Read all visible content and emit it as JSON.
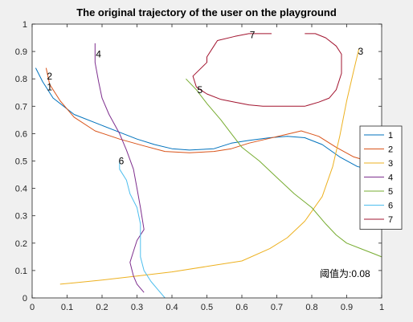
{
  "chart_data": {
    "type": "line",
    "title": "The original trajectory of the user on the playground",
    "xlabel": "",
    "ylabel": "",
    "xlim": [
      0,
      1
    ],
    "ylim": [
      0,
      1
    ],
    "xticks": [
      "0",
      "0.1",
      "0.2",
      "0.3",
      "0.4",
      "0.5",
      "0.6",
      "0.7",
      "0.8",
      "0.9",
      "1"
    ],
    "yticks": [
      "0",
      "0.1",
      "0.2",
      "0.3",
      "0.4",
      "0.5",
      "0.6",
      "0.7",
      "0.8",
      "0.9",
      "1"
    ],
    "grid": false,
    "legend_position": "right",
    "annotation": "阈值为:0.08",
    "series": [
      {
        "name": "1",
        "color": "#0072BD",
        "label": "1",
        "label_at": [
          0.05,
          0.77
        ],
        "points": [
          [
            0.01,
            0.84
          ],
          [
            0.03,
            0.79
          ],
          [
            0.06,
            0.73
          ],
          [
            0.12,
            0.67
          ],
          [
            0.2,
            0.63
          ],
          [
            0.3,
            0.58
          ],
          [
            0.35,
            0.56
          ],
          [
            0.4,
            0.545
          ],
          [
            0.45,
            0.54
          ],
          [
            0.52,
            0.545
          ],
          [
            0.57,
            0.565
          ],
          [
            0.62,
            0.575
          ],
          [
            0.68,
            0.585
          ],
          [
            0.73,
            0.59
          ],
          [
            0.78,
            0.585
          ],
          [
            0.83,
            0.56
          ],
          [
            0.88,
            0.515
          ],
          [
            0.93,
            0.48
          ],
          [
            0.96,
            0.47
          ]
        ]
      },
      {
        "name": "2",
        "color": "#D95319",
        "label": "2",
        "label_at": [
          0.05,
          0.81
        ],
        "points": [
          [
            0.04,
            0.84
          ],
          [
            0.05,
            0.78
          ],
          [
            0.08,
            0.72
          ],
          [
            0.12,
            0.66
          ],
          [
            0.18,
            0.61
          ],
          [
            0.25,
            0.58
          ],
          [
            0.32,
            0.555
          ],
          [
            0.38,
            0.535
          ],
          [
            0.45,
            0.53
          ],
          [
            0.52,
            0.535
          ],
          [
            0.57,
            0.545
          ],
          [
            0.62,
            0.565
          ],
          [
            0.67,
            0.58
          ],
          [
            0.72,
            0.595
          ],
          [
            0.77,
            0.61
          ],
          [
            0.82,
            0.59
          ],
          [
            0.87,
            0.55
          ],
          [
            0.92,
            0.515
          ],
          [
            0.96,
            0.5
          ]
        ]
      },
      {
        "name": "3",
        "color": "#EDB120",
        "label": "3",
        "label_at": [
          0.94,
          0.9
        ],
        "points": [
          [
            0.08,
            0.05
          ],
          [
            0.12,
            0.055
          ],
          [
            0.2,
            0.065
          ],
          [
            0.3,
            0.08
          ],
          [
            0.4,
            0.095
          ],
          [
            0.5,
            0.115
          ],
          [
            0.6,
            0.135
          ],
          [
            0.68,
            0.18
          ],
          [
            0.73,
            0.22
          ],
          [
            0.78,
            0.28
          ],
          [
            0.83,
            0.37
          ],
          [
            0.86,
            0.48
          ],
          [
            0.88,
            0.59
          ],
          [
            0.9,
            0.72
          ],
          [
            0.92,
            0.83
          ],
          [
            0.935,
            0.91
          ]
        ]
      },
      {
        "name": "4",
        "color": "#7E2F8E",
        "label": "4",
        "label_at": [
          0.19,
          0.89
        ],
        "points": [
          [
            0.18,
            0.93
          ],
          [
            0.18,
            0.86
          ],
          [
            0.19,
            0.79
          ],
          [
            0.2,
            0.73
          ],
          [
            0.22,
            0.67
          ],
          [
            0.25,
            0.6
          ],
          [
            0.27,
            0.54
          ],
          [
            0.29,
            0.47
          ],
          [
            0.3,
            0.4
          ],
          [
            0.31,
            0.33
          ],
          [
            0.32,
            0.25
          ],
          [
            0.3,
            0.21
          ],
          [
            0.29,
            0.17
          ],
          [
            0.28,
            0.13
          ],
          [
            0.29,
            0.08
          ],
          [
            0.3,
            0.05
          ],
          [
            0.32,
            0.02
          ]
        ]
      },
      {
        "name": "5",
        "color": "#77AC30",
        "label": "5",
        "label_at": [
          0.48,
          0.76
        ],
        "points": [
          [
            0.44,
            0.8
          ],
          [
            0.47,
            0.76
          ],
          [
            0.5,
            0.71
          ],
          [
            0.54,
            0.65
          ],
          [
            0.57,
            0.6
          ],
          [
            0.6,
            0.55
          ],
          [
            0.65,
            0.5
          ],
          [
            0.7,
            0.44
          ],
          [
            0.75,
            0.38
          ],
          [
            0.8,
            0.33
          ],
          [
            0.84,
            0.27
          ],
          [
            0.87,
            0.23
          ],
          [
            0.9,
            0.2
          ],
          [
            0.94,
            0.18
          ],
          [
            0.98,
            0.16
          ],
          [
            1.0,
            0.15
          ]
        ]
      },
      {
        "name": "6",
        "color": "#4DBEEE",
        "label": "6",
        "label_at": [
          0.255,
          0.5
        ],
        "points": [
          [
            0.25,
            0.5
          ],
          [
            0.25,
            0.47
          ],
          [
            0.27,
            0.43
          ],
          [
            0.28,
            0.38
          ],
          [
            0.3,
            0.33
          ],
          [
            0.31,
            0.27
          ],
          [
            0.31,
            0.21
          ],
          [
            0.31,
            0.15
          ],
          [
            0.32,
            0.1
          ],
          [
            0.34,
            0.06
          ],
          [
            0.36,
            0.03
          ],
          [
            0.38,
            0.0
          ]
        ]
      },
      {
        "name": "7",
        "color": "#A2142F",
        "label": "7",
        "label_at": [
          0.63,
          0.96
        ],
        "points": [
          [
            0.78,
            0.965
          ],
          [
            0.81,
            0.965
          ],
          [
            0.84,
            0.95
          ],
          [
            0.87,
            0.92
          ],
          [
            0.885,
            0.89
          ],
          [
            0.885,
            0.82
          ],
          [
            0.87,
            0.76
          ],
          [
            0.85,
            0.73
          ],
          [
            0.82,
            0.715
          ],
          [
            0.78,
            0.7
          ],
          [
            0.74,
            0.7
          ],
          [
            0.7,
            0.7
          ],
          [
            0.66,
            0.7
          ],
          [
            0.62,
            0.705
          ],
          [
            0.58,
            0.715
          ],
          [
            0.54,
            0.725
          ],
          [
            0.5,
            0.745
          ],
          [
            0.47,
            0.77
          ],
          [
            0.46,
            0.81
          ],
          [
            0.5,
            0.86
          ],
          [
            0.5,
            0.88
          ],
          [
            0.52,
            0.92
          ],
          [
            0.53,
            0.94
          ],
          [
            0.58,
            0.955
          ],
          [
            0.62,
            0.965
          ],
          [
            0.65,
            0.965
          ],
          [
            0.68,
            0.965
          ],
          [
            0.685,
            0.965
          ]
        ]
      }
    ]
  }
}
